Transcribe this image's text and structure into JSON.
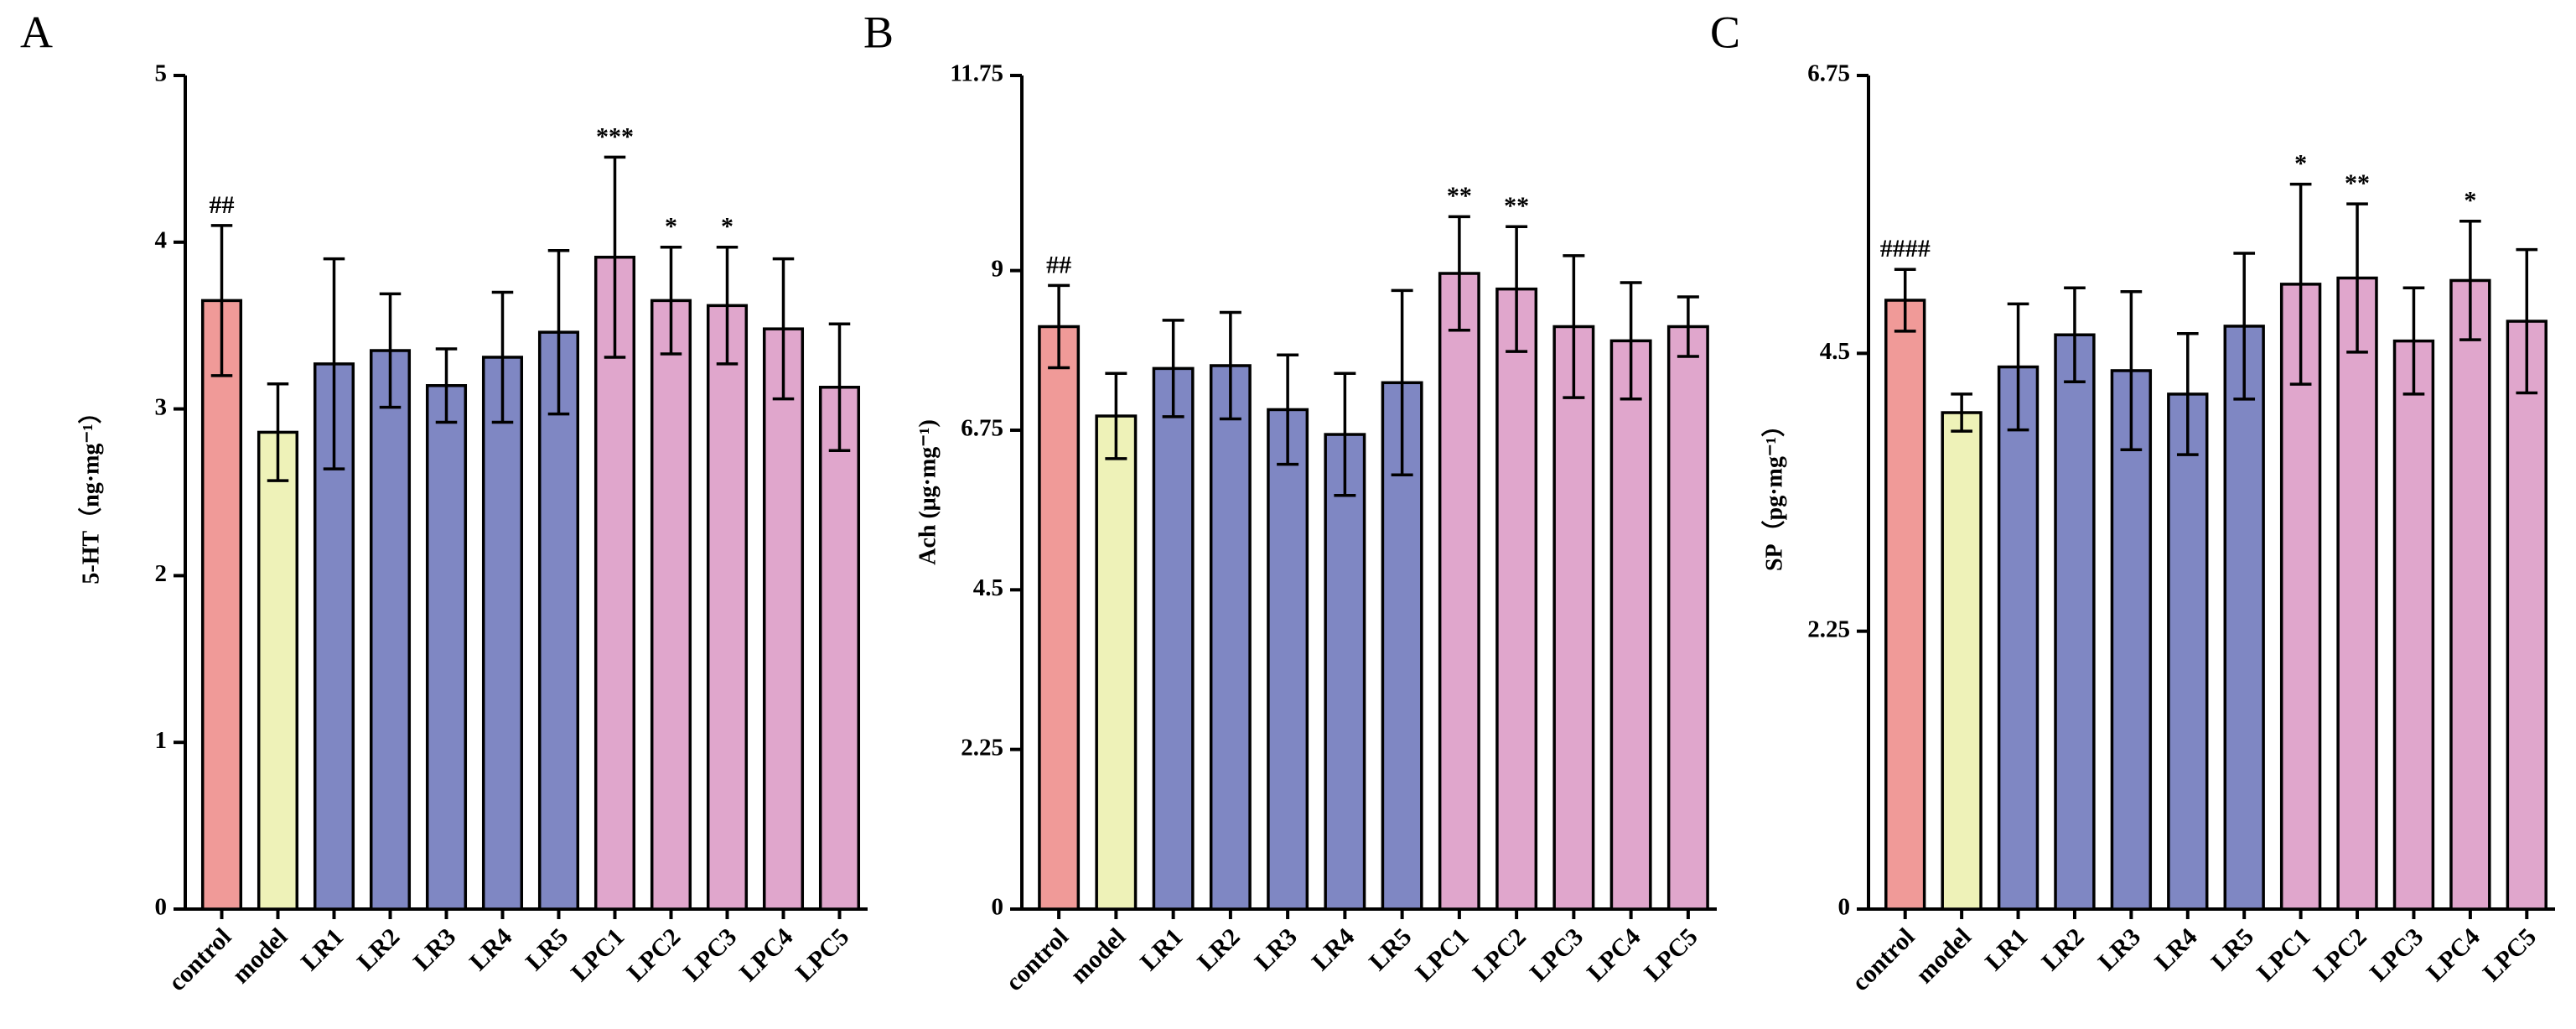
{
  "chart_data": [
    {
      "type": "bar",
      "title": "A",
      "y_label": "5-HT（ng·mg⁻¹）",
      "categories": [
        "control",
        "model",
        "LR1",
        "LR2",
        "LR3",
        "LR4",
        "LR5",
        "LPC1",
        "LPC2",
        "LPC3",
        "LPC4",
        "LPC5"
      ],
      "values": [
        3.65,
        2.86,
        3.27,
        3.35,
        3.14,
        3.31,
        3.46,
        3.91,
        3.65,
        3.62,
        3.48,
        3.13
      ],
      "errors": [
        0.45,
        0.29,
        0.63,
        0.34,
        0.22,
        0.39,
        0.49,
        0.6,
        0.32,
        0.35,
        0.42,
        0.38
      ],
      "annotations": [
        "##",
        null,
        null,
        null,
        null,
        null,
        null,
        "***",
        "*",
        "*",
        null,
        null
      ],
      "colors": [
        "#f09a98",
        "#eef2b8",
        "#7f87c3",
        "#7f87c3",
        "#7f87c3",
        "#7f87c3",
        "#7f87c3",
        "#e0a6cc",
        "#e0a6cc",
        "#e0a6cc",
        "#e0a6cc",
        "#e0a6cc"
      ],
      "ylim": [
        0,
        5
      ],
      "yticks": [
        0,
        1,
        2,
        3,
        4,
        5
      ]
    },
    {
      "type": "bar",
      "title": "B",
      "y_label": "Ach (μg·mg⁻¹)",
      "categories": [
        "control",
        "model",
        "LR1",
        "LR2",
        "LR3",
        "LR4",
        "LR5",
        "LPC1",
        "LPC2",
        "LPC3",
        "LPC4",
        "LPC5"
      ],
      "values": [
        8.21,
        6.95,
        7.62,
        7.66,
        7.04,
        6.69,
        7.42,
        8.96,
        8.74,
        8.21,
        8.01,
        8.21
      ],
      "errors": [
        0.58,
        0.6,
        0.68,
        0.75,
        0.77,
        0.86,
        1.3,
        0.8,
        0.88,
        1.0,
        0.82,
        0.42
      ],
      "annotations": [
        "##",
        null,
        null,
        null,
        null,
        null,
        null,
        "**",
        "**",
        null,
        null,
        null
      ],
      "colors": [
        "#f09a98",
        "#eef2b8",
        "#7f87c3",
        "#7f87c3",
        "#7f87c3",
        "#7f87c3",
        "#7f87c3",
        "#e0a6cc",
        "#e0a6cc",
        "#e0a6cc",
        "#e0a6cc",
        "#e0a6cc"
      ],
      "ylim": [
        0,
        11.75
      ],
      "yticks": [
        0,
        2.25,
        4.5,
        6.75,
        9,
        11.75
      ]
    },
    {
      "type": "bar",
      "title": "C",
      "y_label": "SP（pg·mg⁻¹）",
      "categories": [
        "control",
        "model",
        "LR1",
        "LR2",
        "LR3",
        "LR4",
        "LR5",
        "LPC1",
        "LPC2",
        "LPC3",
        "LPC4",
        "LPC5"
      ],
      "values": [
        4.93,
        4.02,
        4.39,
        4.65,
        4.36,
        4.17,
        4.72,
        5.06,
        5.11,
        4.6,
        5.09,
        4.76
      ],
      "errors": [
        0.25,
        0.15,
        0.51,
        0.38,
        0.64,
        0.49,
        0.59,
        0.81,
        0.6,
        0.43,
        0.48,
        0.58
      ],
      "annotations": [
        "####",
        null,
        null,
        null,
        null,
        null,
        null,
        "*",
        "**",
        null,
        "*",
        null
      ],
      "colors": [
        "#f09a98",
        "#eef2b8",
        "#7f87c3",
        "#7f87c3",
        "#7f87c3",
        "#7f87c3",
        "#7f87c3",
        "#e0a6cc",
        "#e0a6cc",
        "#e0a6cc",
        "#e0a6cc",
        "#e0a6cc"
      ],
      "ylim": [
        0,
        6.75
      ],
      "yticks": [
        0,
        2.25,
        4.5,
        6.75
      ]
    }
  ]
}
